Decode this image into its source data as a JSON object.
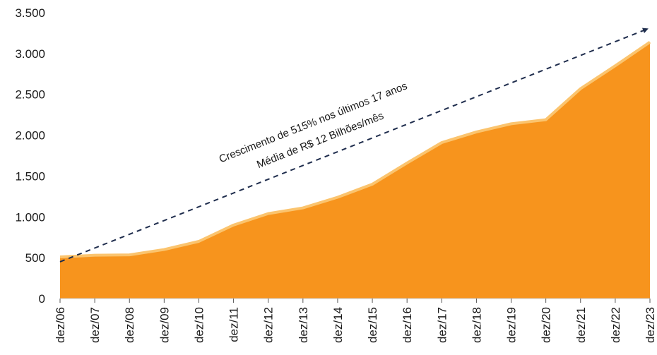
{
  "chart_data": {
    "type": "area",
    "title": "",
    "xlabel": "",
    "ylabel": "",
    "ylim": [
      0,
      3500
    ],
    "yticks": [
      0,
      500,
      1000,
      1500,
      2000,
      2500,
      3000,
      3500
    ],
    "ytick_labels": [
      "0",
      "500",
      "1.000",
      "1.500",
      "2.000",
      "2.500",
      "3.000",
      "3.500"
    ],
    "categories": [
      "dez/06",
      "dez/07",
      "dez/08",
      "dez/09",
      "dez/10",
      "dez/11",
      "dez/12",
      "dez/13",
      "dez/14",
      "dez/15",
      "dez/16",
      "dez/17",
      "dez/18",
      "dez/19",
      "dez/20",
      "dez/21",
      "dez/22",
      "dez/23"
    ],
    "series": [
      {
        "values": [
          510,
          530,
          535,
          600,
          700,
          900,
          1040,
          1110,
          1240,
          1400,
          1660,
          1910,
          2040,
          2140,
          2190,
          2570,
          2850,
          3140
        ]
      }
    ],
    "grid": false,
    "legend": "none",
    "colors": {
      "area": "#f7941d",
      "edge": "#fbc46e",
      "trend": "#1f2d4d",
      "text": "#1a1a1a"
    },
    "annotations": [
      "Crescimento de 515% nos últimos 17 anos",
      "Média de R$ 12 Bilhões/mês"
    ],
    "trend_arrow": {
      "from": {
        "x": "dez/06",
        "y": 450
      },
      "to": {
        "x": "dez/23",
        "y": 3300
      }
    }
  }
}
